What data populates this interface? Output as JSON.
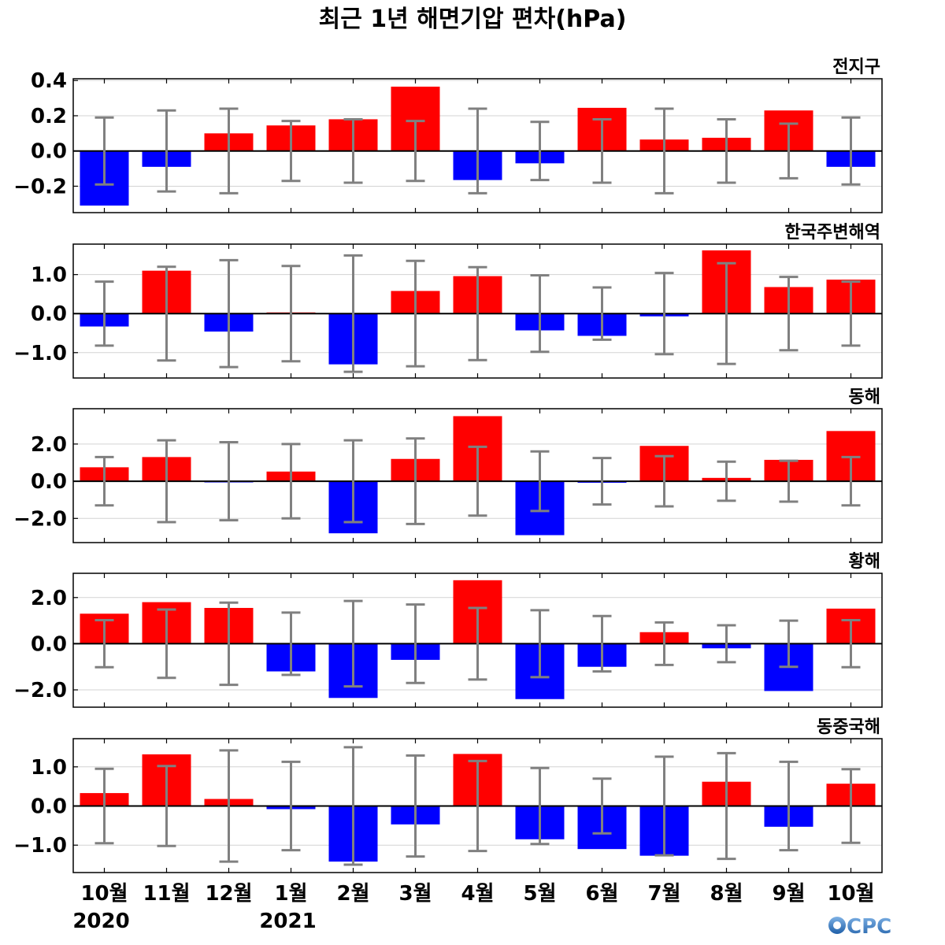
{
  "title": "최근 1년 해면기압 편차(hPa)",
  "x_labels": [
    "10월",
    "11월",
    "12월",
    "1월",
    "2월",
    "3월",
    "4월",
    "5월",
    "6월",
    "7월",
    "8월",
    "9월",
    "10월"
  ],
  "year_labels": [
    {
      "text": "2020",
      "index": 0
    },
    {
      "text": "2021",
      "index": 3
    }
  ],
  "logo_text": "CPC",
  "colors": {
    "positive": "#ff0000",
    "negative": "#0000ff",
    "error_bar": "#808080",
    "zero_line": "#000000",
    "grid": "#d3d3d3"
  },
  "chart_data": [
    {
      "type": "bar",
      "title": "전지구",
      "categories": [
        "10월",
        "11월",
        "12월",
        "1월",
        "2월",
        "3월",
        "4월",
        "5월",
        "6월",
        "7월",
        "8월",
        "9월",
        "10월"
      ],
      "values": [
        -0.31,
        -0.09,
        0.1,
        0.145,
        0.18,
        0.365,
        -0.165,
        -0.07,
        0.245,
        0.065,
        0.075,
        0.23,
        -0.09
      ],
      "error_bars": [
        0.19,
        0.23,
        0.24,
        0.17,
        0.18,
        0.17,
        0.24,
        0.165,
        0.18,
        0.24,
        0.18,
        0.155,
        0.19
      ],
      "ylim": [
        -0.35,
        0.41
      ],
      "yticks": [
        -0.2,
        0.0,
        0.2,
        0.4
      ],
      "ytick_labels": [
        "−0.2",
        "0.0",
        "0.2",
        "0.4"
      ]
    },
    {
      "type": "bar",
      "title": "한국주변해역",
      "categories": [
        "10월",
        "11월",
        "12월",
        "1월",
        "2월",
        "3월",
        "4월",
        "5월",
        "6월",
        "7월",
        "8월",
        "9월",
        "10월"
      ],
      "values": [
        -0.33,
        1.1,
        -0.46,
        0.03,
        -1.3,
        0.58,
        0.96,
        -0.43,
        -0.57,
        -0.07,
        1.62,
        0.68,
        0.87
      ],
      "error_bars": [
        0.82,
        1.2,
        1.37,
        1.22,
        1.49,
        1.35,
        1.19,
        0.98,
        0.67,
        1.04,
        1.29,
        0.94,
        0.82
      ],
      "ylim": [
        -1.65,
        1.78
      ],
      "yticks": [
        -1.0,
        0.0,
        1.0
      ],
      "ytick_labels": [
        "−1.0",
        "0.0",
        "1.0"
      ]
    },
    {
      "type": "bar",
      "title": "동해",
      "categories": [
        "10월",
        "11월",
        "12월",
        "1월",
        "2월",
        "3월",
        "4월",
        "5월",
        "6월",
        "7월",
        "8월",
        "9월",
        "10월"
      ],
      "values": [
        0.75,
        1.3,
        -0.06,
        0.52,
        -2.8,
        1.2,
        3.5,
        -2.9,
        -0.08,
        1.9,
        0.18,
        1.15,
        2.7
      ],
      "error_bars": [
        1.3,
        2.2,
        2.1,
        2.0,
        2.2,
        2.3,
        1.85,
        1.6,
        1.25,
        1.35,
        1.05,
        1.1,
        1.3
      ],
      "ylim": [
        -3.3,
        3.9
      ],
      "yticks": [
        -2.0,
        0.0,
        2.0
      ],
      "ytick_labels": [
        "−2.0",
        "0.0",
        "2.0"
      ]
    },
    {
      "type": "bar",
      "title": "황해",
      "categories": [
        "10월",
        "11월",
        "12월",
        "1월",
        "2월",
        "3월",
        "4월",
        "5월",
        "6월",
        "7월",
        "8월",
        "9월",
        "10월"
      ],
      "values": [
        1.3,
        1.8,
        1.55,
        -1.2,
        -2.35,
        -0.7,
        2.75,
        -2.4,
        -1.0,
        0.5,
        -0.2,
        -2.05,
        1.52
      ],
      "error_bars": [
        1.02,
        1.48,
        1.78,
        1.35,
        1.85,
        1.7,
        1.55,
        1.45,
        1.2,
        0.92,
        0.8,
        1.0,
        1.02
      ],
      "ylim": [
        -2.75,
        3.05
      ],
      "yticks": [
        -2.0,
        0.0,
        2.0
      ],
      "ytick_labels": [
        "−2.0",
        "0.0",
        "2.0"
      ]
    },
    {
      "type": "bar",
      "title": "동중국해",
      "categories": [
        "10월",
        "11월",
        "12월",
        "1월",
        "2월",
        "3월",
        "4월",
        "5월",
        "6월",
        "7월",
        "8월",
        "9월",
        "10월"
      ],
      "values": [
        0.33,
        1.32,
        0.18,
        -0.08,
        -1.42,
        -0.47,
        1.33,
        -0.85,
        -1.1,
        -1.27,
        0.62,
        -0.53,
        0.57
      ],
      "error_bars": [
        0.95,
        1.02,
        1.42,
        1.13,
        1.5,
        1.29,
        1.15,
        0.97,
        0.7,
        1.26,
        1.35,
        1.13,
        0.94
      ],
      "ylim": [
        -1.7,
        1.72
      ],
      "yticks": [
        -1.0,
        0.0,
        1.0
      ],
      "ytick_labels": [
        "−1.0",
        "0.0",
        "1.0"
      ]
    }
  ]
}
